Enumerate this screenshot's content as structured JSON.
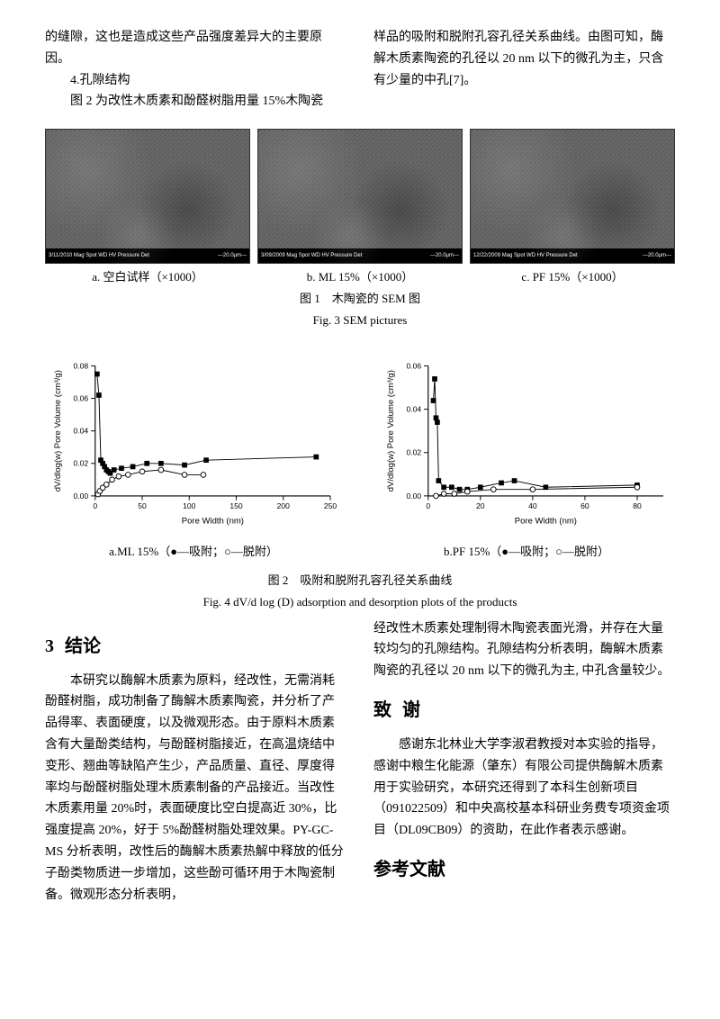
{
  "top": {
    "left_p1": "的缝隙，这也是造成这些产品强度差异大的主要原因。",
    "left_p2": "4.孔隙结构",
    "left_p3": "图 2 为改性木质素和酚醛树脂用量 15%木陶瓷",
    "right_p1": "样品的吸附和脱附孔容孔径关系曲线。由图可知，酶解木质素陶瓷的孔径以 20 nm 以下的微孔为主，只含有少量的中孔[7]。"
  },
  "sem": {
    "items": [
      {
        "caption": "a. 空白试样（×1000）",
        "bar_left": "3/11/2010 Mag Spot WD HV Pressure Det",
        "bar_right": "—20.0μm—"
      },
      {
        "caption": "b. ML 15%（×1000）",
        "bar_left": "3/09/2009 Mag Spot WD HV Pressure Det",
        "bar_right": "—20.0μm—"
      },
      {
        "caption": "c. PF 15%（×1000）",
        "bar_left": "12/22/2009 Mag Spot WD HV Pressure Det",
        "bar_right": "—20.0μm—"
      }
    ],
    "fig_cn": "图 1　木陶瓷的 SEM 图",
    "fig_en": "Fig. 3 SEM pictures"
  },
  "charts": {
    "a": {
      "caption": "a.ML 15%（●—吸附；○—脱附）",
      "xlabel": "Pore Width (nm)",
      "ylabel": "dV/dlog(w) Pore Volume (cm³/g)",
      "xlim": [
        0,
        250
      ],
      "xtick_step": 50,
      "ylim": [
        0,
        0.08
      ],
      "ytick_step": 0.02,
      "series_filled": [
        {
          "x": 2,
          "y": 0.075
        },
        {
          "x": 4,
          "y": 0.062
        },
        {
          "x": 6,
          "y": 0.022
        },
        {
          "x": 8,
          "y": 0.02
        },
        {
          "x": 10,
          "y": 0.018
        },
        {
          "x": 12,
          "y": 0.016
        },
        {
          "x": 14,
          "y": 0.015
        },
        {
          "x": 16,
          "y": 0.014
        },
        {
          "x": 20,
          "y": 0.016
        },
        {
          "x": 28,
          "y": 0.017
        },
        {
          "x": 40,
          "y": 0.018
        },
        {
          "x": 55,
          "y": 0.02
        },
        {
          "x": 70,
          "y": 0.02
        },
        {
          "x": 95,
          "y": 0.019
        },
        {
          "x": 118,
          "y": 0.022
        },
        {
          "x": 235,
          "y": 0.024
        }
      ],
      "series_open": [
        {
          "x": 3,
          "y": 0.001
        },
        {
          "x": 5,
          "y": 0.003
        },
        {
          "x": 8,
          "y": 0.005
        },
        {
          "x": 12,
          "y": 0.007
        },
        {
          "x": 18,
          "y": 0.01
        },
        {
          "x": 25,
          "y": 0.012
        },
        {
          "x": 35,
          "y": 0.013
        },
        {
          "x": 50,
          "y": 0.015
        },
        {
          "x": 70,
          "y": 0.016
        },
        {
          "x": 95,
          "y": 0.013
        },
        {
          "x": 115,
          "y": 0.013
        }
      ]
    },
    "b": {
      "caption": "b.PF 15%（●—吸附；○—脱附）",
      "xlabel": "Pore Width (nm)",
      "ylabel": "dV/dlog(w) Pore Volume (cm³/g)",
      "xlim": [
        0,
        90
      ],
      "xtick_step": 20,
      "ylim": [
        0,
        0.06
      ],
      "ytick_step": 0.02,
      "series_filled": [
        {
          "x": 2,
          "y": 0.044
        },
        {
          "x": 2.5,
          "y": 0.054
        },
        {
          "x": 3,
          "y": 0.036
        },
        {
          "x": 3.5,
          "y": 0.034
        },
        {
          "x": 4,
          "y": 0.007
        },
        {
          "x": 6,
          "y": 0.004
        },
        {
          "x": 9,
          "y": 0.004
        },
        {
          "x": 12,
          "y": 0.003
        },
        {
          "x": 15,
          "y": 0.003
        },
        {
          "x": 20,
          "y": 0.004
        },
        {
          "x": 28,
          "y": 0.006
        },
        {
          "x": 33,
          "y": 0.007
        },
        {
          "x": 45,
          "y": 0.004
        },
        {
          "x": 80,
          "y": 0.005
        }
      ],
      "series_open": [
        {
          "x": 3,
          "y": 0.0
        },
        {
          "x": 6,
          "y": 0.001
        },
        {
          "x": 10,
          "y": 0.001
        },
        {
          "x": 15,
          "y": 0.002
        },
        {
          "x": 25,
          "y": 0.003
        },
        {
          "x": 40,
          "y": 0.003
        },
        {
          "x": 80,
          "y": 0.004
        }
      ]
    },
    "fig_cn": "图 2　吸附和脱附孔容孔径关系曲线",
    "fig_en": "Fig. 4 dV/d log (D) adsorption and desorption plots of the products"
  },
  "bottom": {
    "sec3_num": "3",
    "sec3_title": "结论",
    "left_p": "本研究以酶解木质素为原料，经改性，无需消耗酚醛树脂，成功制备了酶解木质素陶瓷，并分析了产品得率、表面硬度，以及微观形态。由于原料木质素含有大量酚类结构，与酚醛树脂接近，在高温烧结中变形、翘曲等缺陷产生少，产品质量、直径、厚度得率均与酚醛树脂处理木质素制备的产品接近。当改性木质素用量 20%时，表面硬度比空白提高近 30%，比强度提高 20%，好于 5%酚醛树脂处理效果。PY-GC-MS 分析表明，改性后的酶解木质素热解中释放的低分子酚类物质进一步增加，这些酚可循环用于木陶瓷制备。微观形态分析表明，",
    "right_p1": "经改性木质素处理制得木陶瓷表面光滑，并存在大量较均匀的孔隙结构。孔隙结构分析表明，酶解木质素陶瓷的孔径以 20 nm 以下的微孔为主, 中孔含量较少。",
    "ack_title": "致谢",
    "ack_p": "感谢东北林业大学李淑君教授对本实验的指导，感谢中粮生化能源（肇东）有限公司提供酶解木质素用于实验研究，本研究还得到了本科生创新项目（091022509）和中央高校基本科研业务费专项资金项目（DL09CB09）的资助，在此作者表示感谢。",
    "ref_title": "参考文献"
  }
}
